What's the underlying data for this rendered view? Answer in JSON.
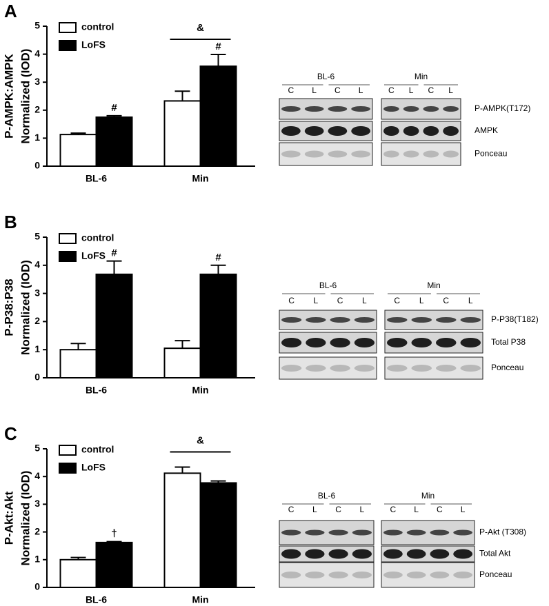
{
  "chart_data": [
    {
      "type": "bar",
      "ylabel": [
        "P-AMPK:AMPK",
        "Normalized (IOD)"
      ],
      "categories": [
        "BL-6",
        "Min"
      ],
      "series": [
        {
          "name": "control",
          "color": "#ffffff",
          "values": [
            1.13,
            2.33
          ],
          "errors": [
            0.05,
            0.35
          ],
          "value_notes": [
            null,
            null
          ]
        },
        {
          "name": "LoFS",
          "color": "#000000",
          "values": [
            1.75,
            3.57
          ],
          "errors": [
            0.05,
            0.42
          ],
          "value_notes": [
            "#",
            "#"
          ]
        }
      ],
      "group_notes": [
        null,
        "&"
      ],
      "ylim": [
        0,
        5
      ],
      "yticks": [
        0,
        1,
        2,
        3,
        4,
        5
      ]
    },
    {
      "type": "bar",
      "ylabel": [
        "P-P38:P38",
        "Normalized (IOD)"
      ],
      "categories": [
        "BL-6",
        "Min"
      ],
      "series": [
        {
          "name": "control",
          "color": "#ffffff",
          "values": [
            1.0,
            1.05
          ],
          "errors": [
            0.22,
            0.27
          ],
          "value_notes": [
            null,
            null
          ]
        },
        {
          "name": "LoFS",
          "color": "#000000",
          "values": [
            3.68,
            3.68
          ],
          "errors": [
            0.47,
            0.32
          ],
          "value_notes": [
            "#",
            "#"
          ]
        }
      ],
      "group_notes": [
        null,
        null
      ],
      "ylim": [
        0,
        5
      ],
      "yticks": [
        0,
        1,
        2,
        3,
        4,
        5
      ]
    },
    {
      "type": "bar",
      "ylabel": [
        "P-Akt:Akt",
        "Normalized (IOD)"
      ],
      "categories": [
        "BL-6",
        "Min"
      ],
      "series": [
        {
          "name": "control",
          "color": "#ffffff",
          "values": [
            1.0,
            4.12
          ],
          "errors": [
            0.08,
            0.22
          ],
          "value_notes": [
            null,
            null
          ]
        },
        {
          "name": "LoFS",
          "color": "#000000",
          "values": [
            1.62,
            3.77
          ],
          "errors": [
            0.03,
            0.07
          ],
          "value_notes": [
            "†",
            null
          ]
        }
      ],
      "group_notes": [
        null,
        "&"
      ],
      "ylim": [
        0,
        5
      ],
      "yticks": [
        0,
        1,
        2,
        3,
        4,
        5
      ]
    }
  ],
  "panels": [
    {
      "letter": "A",
      "blot": {
        "groups": [
          "BL-6",
          "Min"
        ],
        "lanes": [
          "C",
          "L",
          "C",
          "L"
        ],
        "rows": [
          "P-AMPK(T172)",
          "AMPK",
          "Ponceau"
        ]
      }
    },
    {
      "letter": "B",
      "blot": {
        "groups": [
          "BL-6",
          "Min"
        ],
        "lanes": [
          "C",
          "L",
          "C",
          "L"
        ],
        "rows": [
          "P-P38(T182)",
          "Total P38",
          "Ponceau"
        ]
      }
    },
    {
      "letter": "C",
      "blot": {
        "groups": [
          "BL-6",
          "Min"
        ],
        "lanes": [
          "C",
          "L",
          "C",
          "L"
        ],
        "rows": [
          "P-Akt (T308)",
          "Total Akt",
          "Ponceau"
        ]
      }
    }
  ]
}
